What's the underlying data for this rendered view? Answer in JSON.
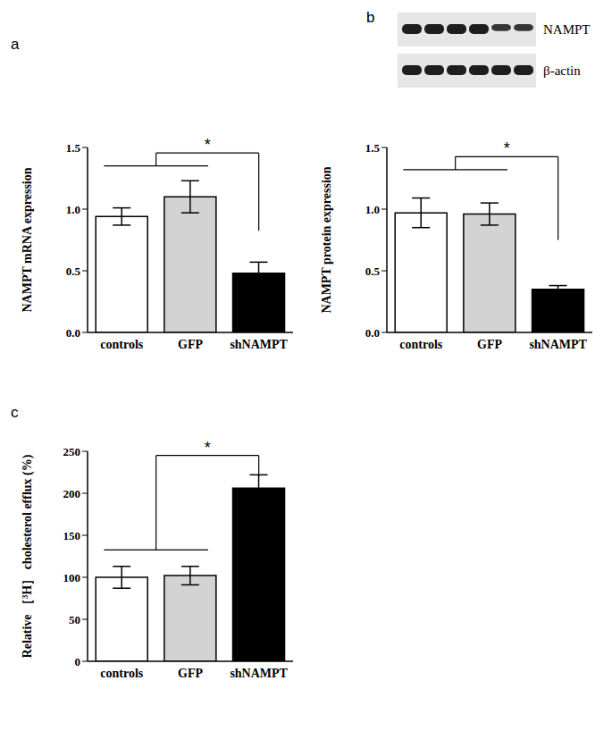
{
  "chart_data": [
    {
      "type": "bar",
      "title": "a",
      "y_label": "NAMPT mRNA expression",
      "categories": [
        "controls",
        "GFP",
        "shNAMPT"
      ],
      "values": [
        0.94,
        1.1,
        0.48
      ],
      "errors": [
        0.07,
        0.13,
        0.09
      ],
      "colors": [
        "#ffffff",
        "#d3d3d3",
        "#000000"
      ],
      "ylim": [
        0,
        1.5
      ],
      "yticks": [
        {
          "value": 0,
          "label": "0.0"
        },
        {
          "value": 0.5,
          "label": "0.5"
        },
        {
          "value": 1.0,
          "label": "1.0"
        },
        {
          "value": 1.5,
          "label": "1.5"
        }
      ],
      "grid": false,
      "annotations": [
        "*"
      ]
    },
    {
      "type": "bar",
      "title": "b",
      "y_label": "NAMPT protein expression",
      "categories": [
        "controls",
        "GFP",
        "shNAMPT"
      ],
      "values": [
        0.97,
        0.96,
        0.35
      ],
      "errors": [
        0.12,
        0.09,
        0.03
      ],
      "colors": [
        "#ffffff",
        "#d3d3d3",
        "#000000"
      ],
      "ylim": [
        0,
        1.5
      ],
      "yticks": [
        {
          "value": 0,
          "label": "0.0"
        },
        {
          "value": 0.5,
          "label": "0.5"
        },
        {
          "value": 1.0,
          "label": "1.0"
        },
        {
          "value": 1.5,
          "label": "1.5"
        }
      ],
      "grid": false,
      "annotations": [
        "*"
      ],
      "blot_labels": [
        "NAMPT",
        "β-actin"
      ]
    },
    {
      "type": "bar",
      "title": "c",
      "y_label": "Relative ［³H］ cholesterol efflux (%)",
      "categories": [
        "controls",
        "GFP",
        "shNAMPT"
      ],
      "values": [
        100,
        102,
        206
      ],
      "errors": [
        13,
        11,
        16
      ],
      "colors": [
        "#ffffff",
        "#d3d3d3",
        "#000000"
      ],
      "ylim": [
        0,
        250
      ],
      "yticks": [
        0,
        50,
        100,
        150,
        200,
        250
      ],
      "grid": false,
      "annotations": [
        "*"
      ]
    }
  ]
}
